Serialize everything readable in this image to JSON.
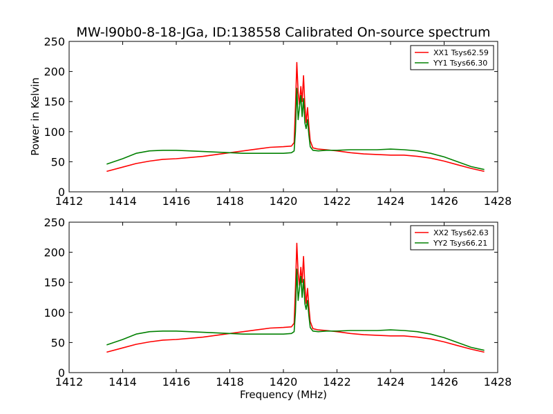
{
  "figure": {
    "title": "MW-l90b0-8-18-JGa, ID:138558 Calibrated On-source spectrum",
    "xlabel": "Frequency (MHz)"
  },
  "colors": {
    "red": "#ff0000",
    "green": "#008000"
  },
  "chart_data": [
    {
      "type": "line",
      "title": "MW-l90b0-8-18-JGa, ID:138558 Calibrated On-source spectrum",
      "xlabel": "",
      "ylabel": "Power in Kelvin",
      "xlim": [
        1412,
        1428
      ],
      "ylim": [
        0,
        250
      ],
      "xticks": [
        1412,
        1414,
        1416,
        1418,
        1420,
        1422,
        1424,
        1426,
        1428
      ],
      "yticks": [
        0,
        50,
        100,
        150,
        200,
        250
      ],
      "grid": false,
      "legend_position": "top-right",
      "series": [
        {
          "name": "XX1 Tsys62.59",
          "color": "#ff0000",
          "x": [
            1413.4,
            1414,
            1414.5,
            1415,
            1415.5,
            1416,
            1416.5,
            1417,
            1417.5,
            1418,
            1418.5,
            1419,
            1419.5,
            1420,
            1420.3,
            1420.4,
            1420.45,
            1420.5,
            1420.55,
            1420.6,
            1420.65,
            1420.7,
            1420.75,
            1420.8,
            1420.85,
            1420.9,
            1420.95,
            1421,
            1421.1,
            1421.3,
            1421.6,
            1422,
            1422.5,
            1423,
            1423.5,
            1424,
            1424.5,
            1425,
            1425.5,
            1426,
            1426.5,
            1427,
            1427.5
          ],
          "y": [
            34,
            41,
            47,
            51,
            54,
            55,
            57,
            59,
            62,
            65,
            68,
            71,
            74,
            75,
            76,
            82,
            140,
            215,
            165,
            145,
            175,
            150,
            193,
            145,
            115,
            140,
            110,
            85,
            73,
            71,
            70,
            68,
            65,
            63,
            62,
            61,
            61,
            59,
            56,
            51,
            45,
            39,
            34
          ]
        },
        {
          "name": "YY1 Tsys66.30",
          "color": "#008000",
          "x": [
            1413.4,
            1414,
            1414.5,
            1415,
            1415.5,
            1416,
            1416.5,
            1417,
            1417.5,
            1418,
            1418.5,
            1419,
            1419.5,
            1420,
            1420.3,
            1420.4,
            1420.45,
            1420.5,
            1420.55,
            1420.6,
            1420.65,
            1420.7,
            1420.75,
            1420.8,
            1420.85,
            1420.9,
            1420.95,
            1421,
            1421.1,
            1421.3,
            1421.6,
            1422,
            1422.5,
            1423,
            1423.5,
            1424,
            1424.5,
            1425,
            1425.5,
            1426,
            1426.5,
            1427,
            1427.5
          ],
          "y": [
            46,
            55,
            64,
            68,
            69,
            69,
            68,
            67,
            66,
            65,
            64,
            64,
            64,
            64,
            65,
            68,
            100,
            172,
            120,
            140,
            160,
            125,
            155,
            115,
            105,
            120,
            95,
            75,
            69,
            68,
            69,
            69,
            70,
            70,
            70,
            71,
            70,
            68,
            64,
            58,
            50,
            42,
            37
          ]
        }
      ]
    },
    {
      "type": "line",
      "title": "",
      "xlabel": "Frequency (MHz)",
      "ylabel": "",
      "xlim": [
        1412,
        1428
      ],
      "ylim": [
        0,
        250
      ],
      "xticks": [
        1412,
        1414,
        1416,
        1418,
        1420,
        1422,
        1424,
        1426,
        1428
      ],
      "yticks": [
        0,
        50,
        100,
        150,
        200,
        250
      ],
      "grid": false,
      "legend_position": "top-right",
      "series": [
        {
          "name": "XX2 Tsys62.63",
          "color": "#ff0000",
          "x": [
            1413.4,
            1414,
            1414.5,
            1415,
            1415.5,
            1416,
            1416.5,
            1417,
            1417.5,
            1418,
            1418.5,
            1419,
            1419.5,
            1420,
            1420.3,
            1420.4,
            1420.45,
            1420.5,
            1420.55,
            1420.6,
            1420.65,
            1420.7,
            1420.75,
            1420.8,
            1420.85,
            1420.9,
            1420.95,
            1421,
            1421.1,
            1421.3,
            1421.6,
            1422,
            1422.5,
            1423,
            1423.5,
            1424,
            1424.5,
            1425,
            1425.5,
            1426,
            1426.5,
            1427,
            1427.5
          ],
          "y": [
            34,
            41,
            47,
            51,
            54,
            55,
            57,
            59,
            62,
            65,
            68,
            71,
            74,
            75,
            76,
            82,
            140,
            215,
            165,
            145,
            175,
            150,
            193,
            145,
            115,
            140,
            110,
            85,
            73,
            71,
            70,
            68,
            65,
            63,
            62,
            61,
            61,
            59,
            56,
            51,
            45,
            39,
            34
          ]
        },
        {
          "name": "YY2 Tsys66.21",
          "color": "#008000",
          "x": [
            1413.4,
            1414,
            1414.5,
            1415,
            1415.5,
            1416,
            1416.5,
            1417,
            1417.5,
            1418,
            1418.5,
            1419,
            1419.5,
            1420,
            1420.3,
            1420.4,
            1420.45,
            1420.5,
            1420.55,
            1420.6,
            1420.65,
            1420.7,
            1420.75,
            1420.8,
            1420.85,
            1420.9,
            1420.95,
            1421,
            1421.1,
            1421.3,
            1421.6,
            1422,
            1422.5,
            1423,
            1423.5,
            1424,
            1424.5,
            1425,
            1425.5,
            1426,
            1426.5,
            1427,
            1427.5
          ],
          "y": [
            46,
            55,
            64,
            68,
            69,
            69,
            68,
            67,
            66,
            65,
            64,
            64,
            64,
            64,
            65,
            68,
            100,
            172,
            120,
            140,
            160,
            125,
            155,
            115,
            105,
            120,
            95,
            75,
            69,
            68,
            69,
            69,
            70,
            70,
            70,
            71,
            70,
            68,
            64,
            58,
            50,
            42,
            37
          ]
        }
      ]
    }
  ]
}
